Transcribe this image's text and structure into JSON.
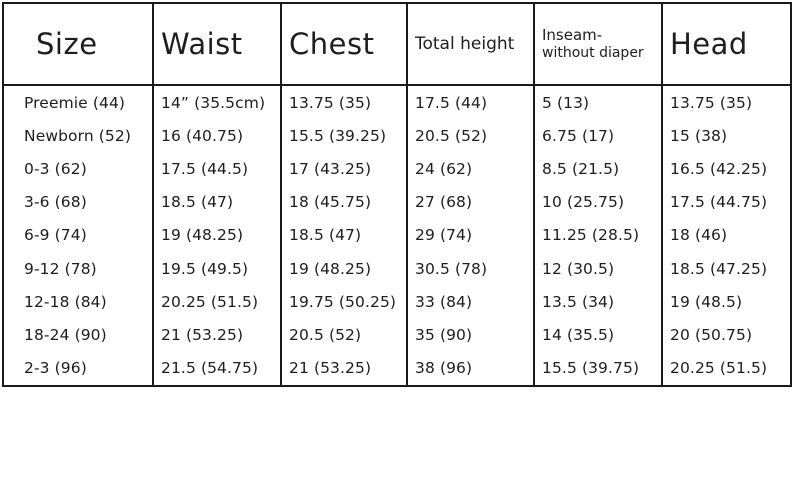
{
  "headers": {
    "size": "Size",
    "waist": "Waist",
    "chest": "Chest",
    "total_height": "Total height",
    "inseam_line1": "Inseam-",
    "inseam_line2": "without diaper",
    "head": "Head"
  },
  "rows": [
    [
      "Preemie (44)",
      "14” (35.5cm)",
      "13.75 (35)",
      "17.5 (44)",
      "5 (13)",
      "13.75 (35)"
    ],
    [
      "Newborn (52)",
      "16 (40.75)",
      "15.5 (39.25)",
      "20.5 (52)",
      "6.75 (17)",
      "15 (38)"
    ],
    [
      "0-3 (62)",
      "17.5 (44.5)",
      "17 (43.25)",
      "24 (62)",
      "8.5 (21.5)",
      "16.5 (42.25)"
    ],
    [
      "3-6 (68)",
      "18.5 (47)",
      "18 (45.75)",
      "27 (68)",
      "10 (25.75)",
      "17.5 (44.75)"
    ],
    [
      "6-9 (74)",
      "19 (48.25)",
      "18.5 (47)",
      "29 (74)",
      "11.25 (28.5)",
      "18 (46)"
    ],
    [
      "9-12 (78)",
      "19.5 (49.5)",
      "19 (48.25)",
      "30.5 (78)",
      "12 (30.5)",
      "18.5 (47.25)"
    ],
    [
      "12-18 (84)",
      "20.25 (51.5)",
      "19.75 (50.25)",
      "33 (84)",
      "13.5 (34)",
      "19 (48.5)"
    ],
    [
      "18-24 (90)",
      "21 (53.25)",
      "20.5 (52)",
      "35 (90)",
      "14 (35.5)",
      "20 (50.75)"
    ],
    [
      "2-3 (96)",
      "21.5 (54.75)",
      "21 (53.25)",
      "38 (96)",
      "15.5 (39.75)",
      "20.25 (51.5)"
    ]
  ]
}
